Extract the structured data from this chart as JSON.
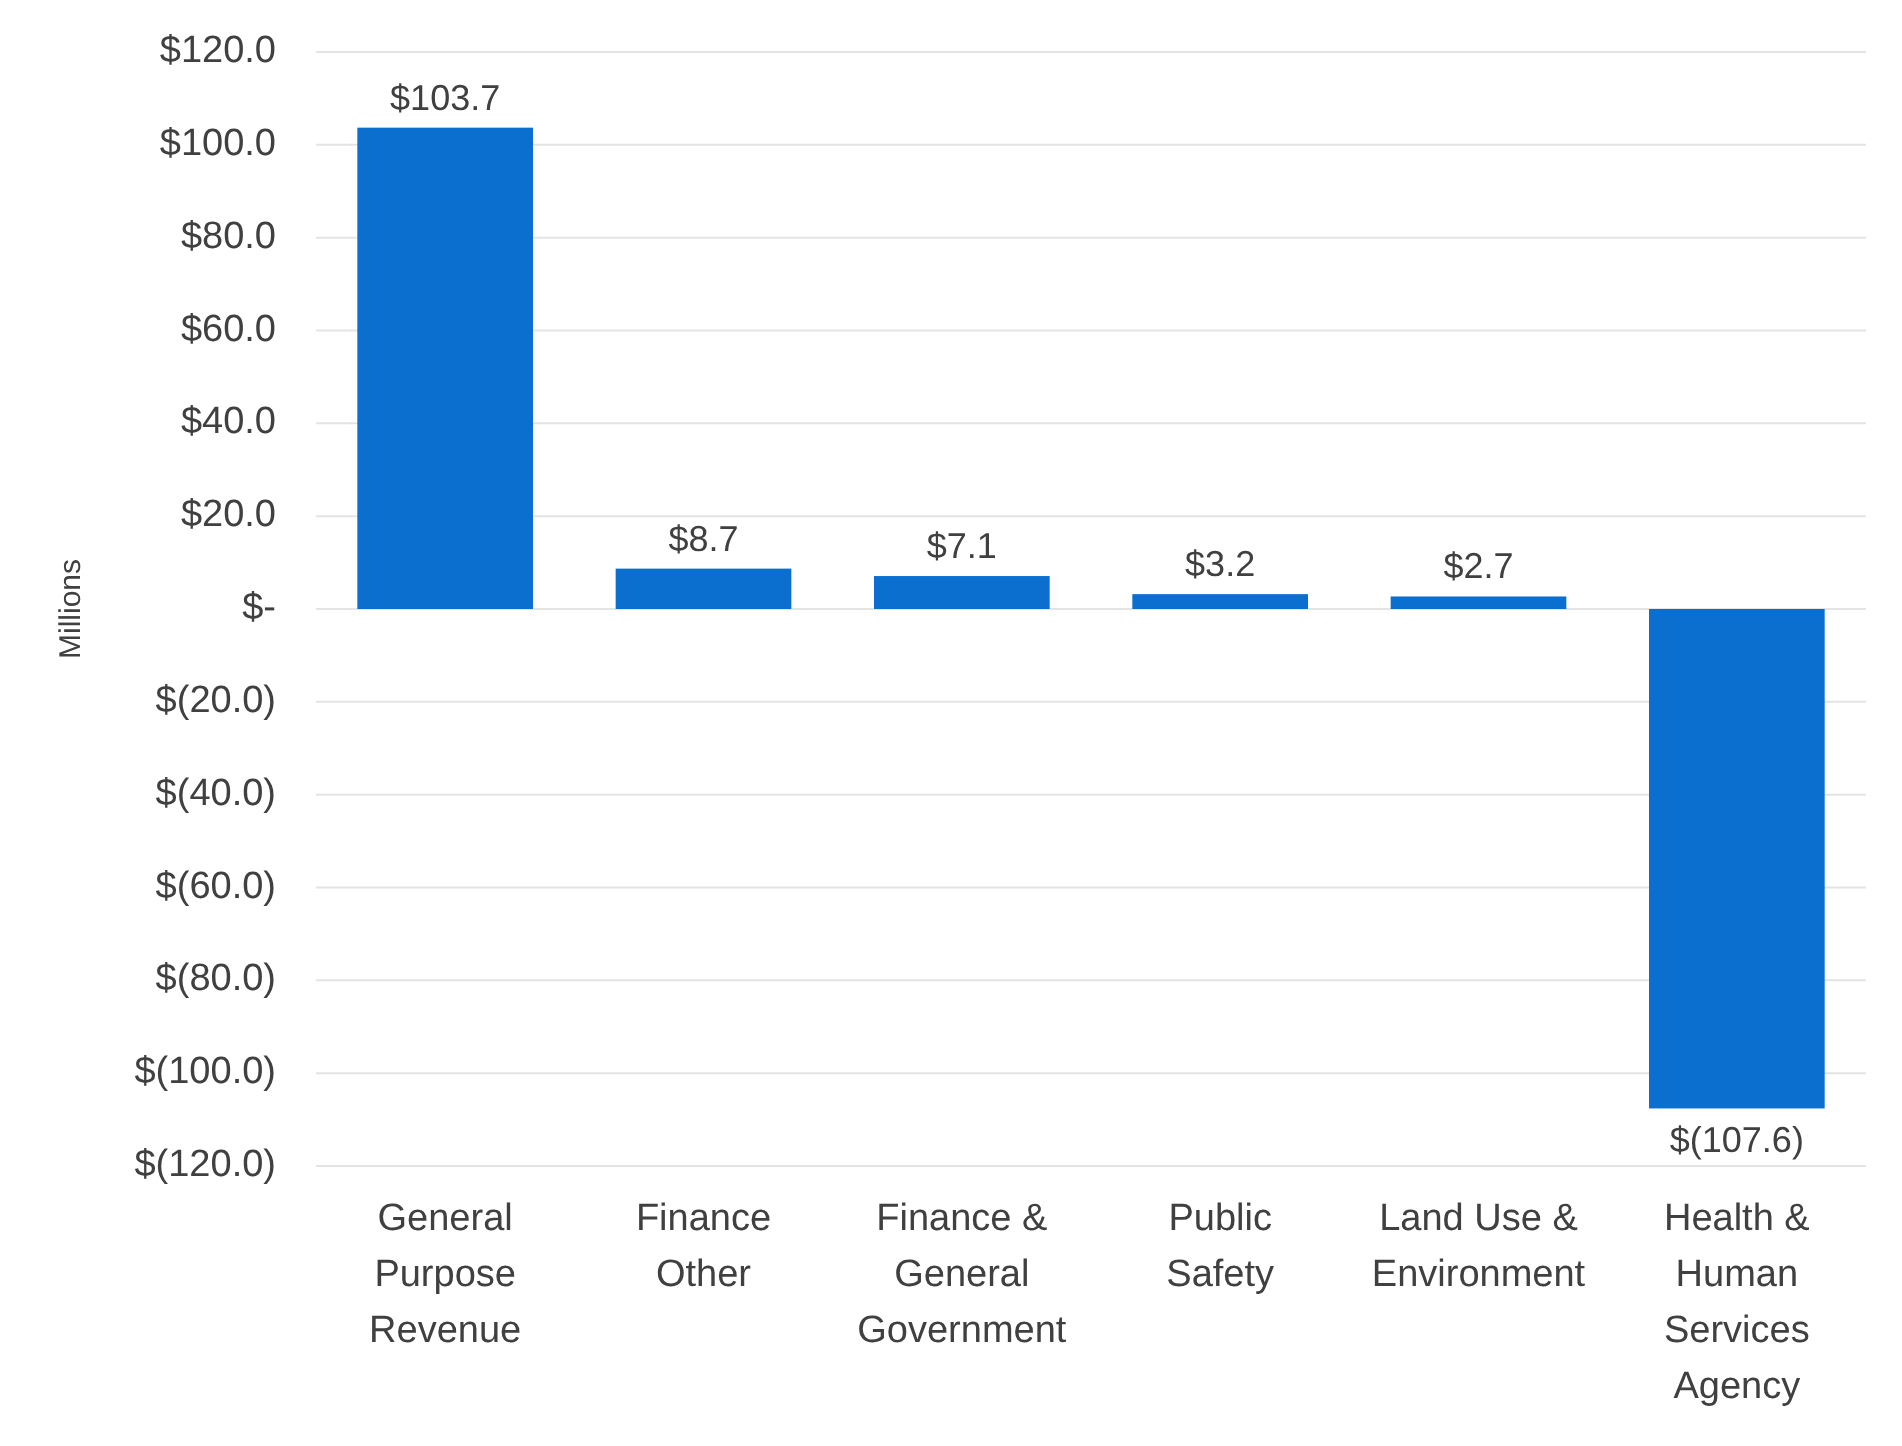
{
  "chart_data": {
    "type": "bar",
    "ylabel": "Millions",
    "categories": [
      "General Purpose Revenue",
      "Finance Other",
      "Finance & General Government",
      "Public Safety",
      "Land Use & Environment",
      "Health & Human Services Agency"
    ],
    "values": [
      103.7,
      8.7,
      7.1,
      3.2,
      2.7,
      -107.6
    ],
    "value_labels": [
      "$103.7",
      "$8.7",
      "$7.1",
      "$3.2",
      "$2.7",
      "$(107.6)"
    ],
    "color": "#0b6fd0",
    "ylim": [
      -120,
      120
    ],
    "yticks": [
      {
        "value": -120,
        "label": "$(120.0)"
      },
      {
        "value": -100,
        "label": "$(100.0)"
      },
      {
        "value": -80,
        "label": "$(80.0)"
      },
      {
        "value": -60,
        "label": "$(60.0)"
      },
      {
        "value": -40,
        "label": "$(40.0)"
      },
      {
        "value": -20,
        "label": "$(20.0)"
      },
      {
        "value": 0,
        "label": "$-"
      },
      {
        "value": 20,
        "label": "$20.0"
      },
      {
        "value": 40,
        "label": "$40.0"
      },
      {
        "value": 60,
        "label": "$60.0"
      },
      {
        "value": 80,
        "label": "$80.0"
      },
      {
        "value": 100,
        "label": "$100.0"
      },
      {
        "value": 120,
        "label": "$120.0"
      }
    ],
    "grid": true
  }
}
